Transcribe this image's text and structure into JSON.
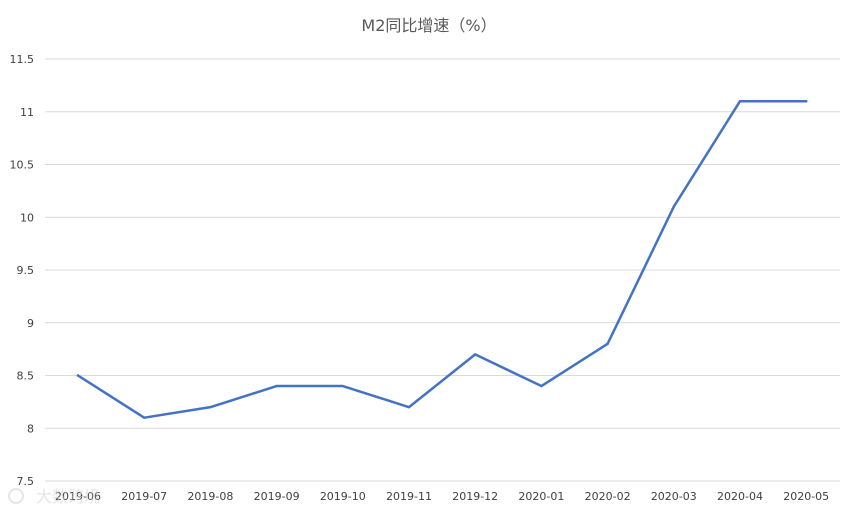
{
  "chart_data": {
    "type": "line",
    "title": "M2同比增速（%）",
    "xlabel": "",
    "ylabel": "",
    "categories": [
      "2019-06",
      "2019-07",
      "2019-08",
      "2019-09",
      "2019-10",
      "2019-11",
      "2019-12",
      "2020-01",
      "2020-02",
      "2020-03",
      "2020-04",
      "2020-05"
    ],
    "series": [
      {
        "values": [
          8.5,
          8.1,
          8.2,
          8.4,
          8.4,
          8.2,
          8.7,
          8.4,
          8.8,
          10.1,
          11.1,
          11.1
        ]
      }
    ],
    "ylim": [
      7.5,
      11.5
    ],
    "yticks": [
      "7.5",
      "8",
      "8.5",
      "9",
      "9.5",
      "10",
      "10.5",
      "11",
      "11.5"
    ],
    "grid": true,
    "legend": "none",
    "colors": {
      "line": "#4472c4",
      "grid": "#d9d9d9",
      "text": "#404040"
    }
  },
  "watermark": {
    "text": "大数跨境"
  }
}
